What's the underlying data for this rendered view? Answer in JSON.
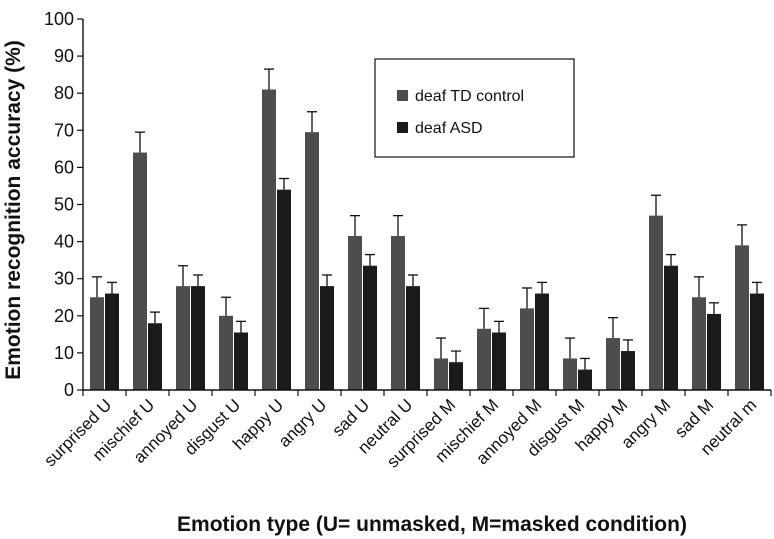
{
  "chart_data": {
    "type": "bar",
    "title": "",
    "xlabel": "Emotion type (U= unmasked, M=masked condition)",
    "ylabel": "Emotion recognition accuracy (%)",
    "ylim": [
      0,
      100
    ],
    "yticks": [
      0,
      10,
      20,
      30,
      40,
      50,
      60,
      70,
      80,
      90,
      100
    ],
    "legend_position": "top-right",
    "categories": [
      "surprised U",
      "mischief U",
      "annoyed U",
      "disgust U",
      "happy U",
      "angry U",
      "sad U",
      "neutral U",
      "surprised M",
      "mischief M",
      "annoyed M",
      "disgust M",
      "happy M",
      "angry M",
      "sad M",
      "neutral m"
    ],
    "series": [
      {
        "name": "deaf TD control",
        "color": "#4d4d4d",
        "values": [
          25,
          64,
          28,
          20,
          81,
          69.5,
          41.5,
          41.5,
          8.5,
          16.5,
          22,
          8.5,
          14,
          47,
          25,
          39
        ],
        "errors": [
          5.5,
          5.5,
          5.5,
          5,
          5.5,
          5.5,
          5.5,
          5.5,
          5.5,
          5.5,
          5.5,
          5.5,
          5.5,
          5.5,
          5.5,
          5.5
        ]
      },
      {
        "name": "deaf ASD",
        "color": "#1a1a1a",
        "values": [
          26,
          18,
          28,
          15.5,
          54,
          28,
          33.5,
          28,
          7.5,
          15.5,
          26,
          5.5,
          10.5,
          33.5,
          20.5,
          26
        ],
        "errors": [
          3,
          3,
          3,
          3,
          3,
          3,
          3,
          3,
          3,
          3,
          3,
          3,
          3,
          3,
          3,
          3
        ]
      }
    ]
  }
}
